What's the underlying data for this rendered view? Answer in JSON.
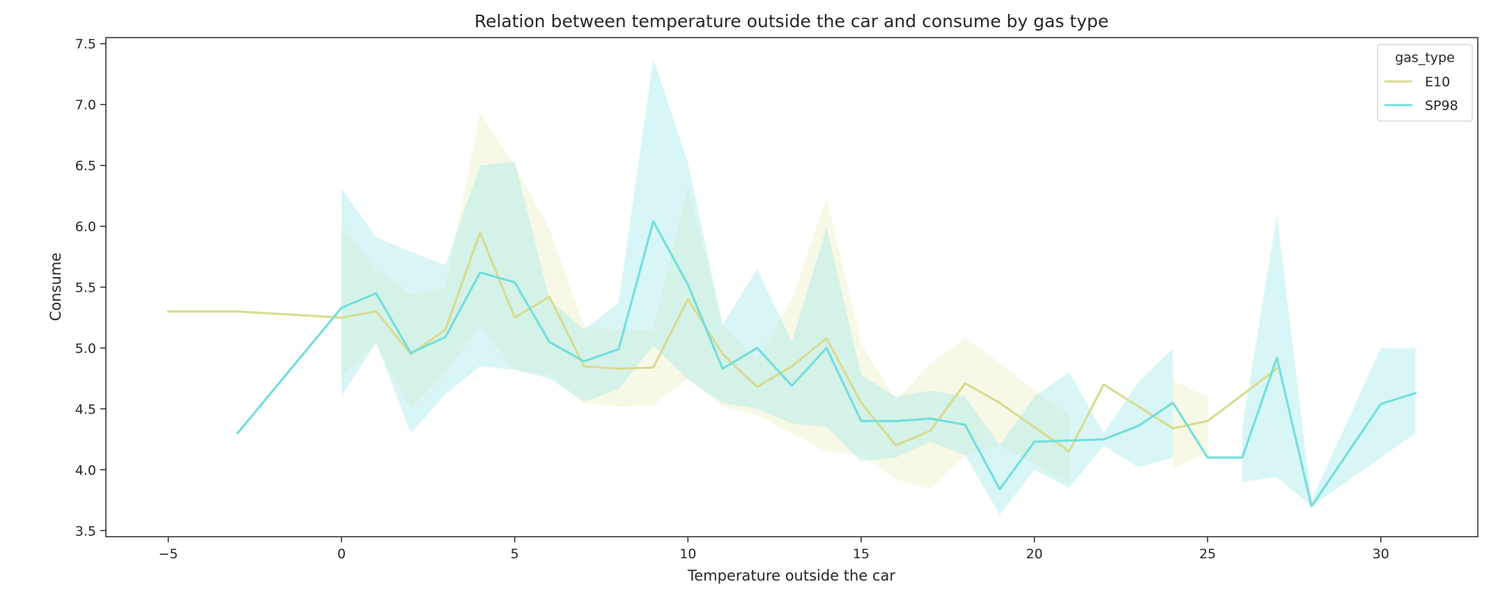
{
  "chart_data": {
    "type": "line",
    "title": "Relation between temperature outside the car and consume by gas type",
    "xlabel": "Temperature outside the car",
    "ylabel": "Consume",
    "xlim": [
      -6.8,
      32.8
    ],
    "ylim": [
      3.45,
      7.55
    ],
    "xticks": [
      -5,
      0,
      5,
      10,
      15,
      20,
      25,
      30
    ],
    "yticks": [
      3.5,
      4.0,
      4.5,
      5.0,
      5.5,
      6.0,
      6.5,
      7.0,
      7.5
    ],
    "grid": false,
    "legend": {
      "title": "gas_type",
      "placement": "top-right"
    },
    "series": [
      {
        "name": "E10",
        "color": "#d8dc8f",
        "band_color": "#eef0c8",
        "x": [
          -5,
          -3,
          0,
          1,
          2,
          3,
          4,
          5,
          6,
          7,
          8,
          9,
          10,
          11,
          12,
          13,
          14,
          15,
          16,
          17,
          18,
          19,
          20,
          21,
          22,
          23,
          24,
          25,
          27
        ],
        "y": [
          5.3,
          5.3,
          5.25,
          5.3,
          4.95,
          5.15,
          5.95,
          5.25,
          5.42,
          4.85,
          4.83,
          4.84,
          5.4,
          4.95,
          4.68,
          4.85,
          5.08,
          4.55,
          4.2,
          4.32,
          4.71,
          4.55,
          4.35,
          4.15,
          4.7,
          4.52,
          4.34,
          4.4,
          4.83
        ],
        "ci_low": [
          null,
          null,
          4.78,
          5.02,
          4.5,
          4.8,
          5.18,
          4.82,
          4.78,
          4.55,
          4.52,
          4.53,
          4.75,
          4.52,
          4.45,
          4.3,
          4.15,
          4.12,
          3.92,
          3.84,
          4.12,
          4.2,
          4.05,
          3.88,
          null,
          null,
          4.0,
          4.15,
          null
        ],
        "ci_high": [
          null,
          null,
          6.0,
          5.65,
          5.44,
          5.5,
          6.93,
          6.5,
          5.98,
          5.18,
          5.15,
          5.15,
          6.32,
          5.19,
          4.9,
          5.4,
          6.24,
          5.04,
          4.57,
          4.87,
          5.08,
          4.88,
          4.65,
          4.45,
          null,
          null,
          4.73,
          4.6,
          null
        ]
      },
      {
        "name": "SP98",
        "color": "#74dedd",
        "band_color": "#a9ecec",
        "x": [
          -3,
          0,
          1,
          2,
          3,
          4,
          5,
          6,
          7,
          8,
          9,
          10,
          11,
          12,
          13,
          14,
          15,
          16,
          17,
          18,
          19,
          20,
          21,
          22,
          23,
          24,
          25,
          26,
          27,
          28,
          30,
          31
        ],
        "y": [
          4.3,
          5.33,
          5.45,
          4.96,
          5.09,
          5.62,
          5.54,
          5.05,
          4.89,
          4.99,
          6.04,
          5.52,
          4.83,
          5.0,
          4.69,
          5.0,
          4.4,
          4.4,
          4.42,
          4.37,
          3.84,
          4.23,
          4.24,
          4.25,
          4.36,
          4.55,
          4.1,
          4.1,
          4.92,
          3.7,
          4.54,
          4.63
        ],
        "ci_low": [
          null,
          4.6,
          5.05,
          4.3,
          4.62,
          4.85,
          4.82,
          4.75,
          4.56,
          4.66,
          5.02,
          4.74,
          4.55,
          4.5,
          4.38,
          4.35,
          4.07,
          4.1,
          4.23,
          4.12,
          3.63,
          4.0,
          3.85,
          4.2,
          4.02,
          4.1,
          null,
          3.9,
          3.94,
          3.7,
          4.1,
          4.3
        ],
        "ci_high": [
          null,
          6.31,
          5.91,
          5.79,
          5.68,
          6.5,
          6.53,
          5.4,
          5.15,
          5.37,
          7.38,
          6.52,
          5.19,
          5.65,
          5.05,
          5.99,
          4.78,
          4.6,
          4.65,
          4.6,
          4.2,
          4.6,
          4.8,
          4.3,
          4.72,
          5.0,
          null,
          4.35,
          6.09,
          3.75,
          5.0,
          5.0
        ]
      }
    ]
  }
}
